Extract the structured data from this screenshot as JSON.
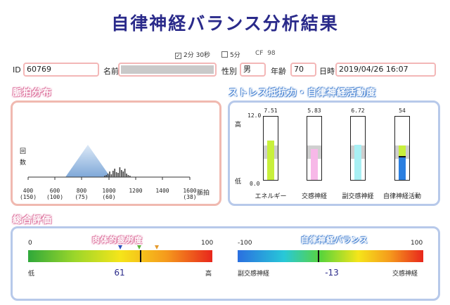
{
  "title": "自律神経バランス分析結果",
  "options": {
    "opt1_label": "2分 30秒",
    "opt1_checked": true,
    "opt2_label": "5分",
    "opt2_checked": false,
    "cf_label": "CF",
    "cf_value": "98"
  },
  "form": {
    "id_label": "ID",
    "id_value": "60769",
    "name_label": "名前",
    "name_value": "",
    "sex_label": "性別",
    "sex_value": "男",
    "age_label": "年齢",
    "age_value": "70",
    "date_label": "日時",
    "date_value": "2019/04/26 16:07"
  },
  "pulse": {
    "title": "脈拍分布",
    "ylabel_1": "回",
    "ylabel_2": "数",
    "xlabel": "脈拍",
    "ticks": [
      "400",
      "600",
      "800",
      "1000",
      "1200",
      "1400",
      "1600"
    ],
    "ticks_sub": [
      "(150)",
      "(100)",
      "(75)",
      "(60)",
      "",
      "",
      "(38)"
    ]
  },
  "stress": {
    "title": "ストレス抵抗力・自律神経活動度",
    "high": "高",
    "low": "低",
    "scale_top": "12.0",
    "scale_bottom": "0.0",
    "bars": [
      {
        "label": "エネルギー",
        "value_text": "7.51",
        "value": 7.51,
        "color": "#c8f03c"
      },
      {
        "label": "交感神経",
        "value_text": "5.83",
        "value": 5.83,
        "color": "#f7b8e8"
      },
      {
        "label": "副交感神経",
        "value_text": "6.72",
        "value": 6.72,
        "color": "#a8f0f4"
      },
      {
        "label": "自律神経活動",
        "value_text": "54",
        "value": 54,
        "color": "#c8f03c",
        "overlay_color": "#2b7fe0"
      }
    ]
  },
  "overall": {
    "title": "総合評価",
    "fatigue": {
      "label": "肉体的疲労度",
      "min": "0",
      "max": "100",
      "low": "低",
      "high": "高",
      "value_text": "61",
      "value": 61
    },
    "balance": {
      "label": "自律神経バランス",
      "min": "-100",
      "max": "100",
      "left": "副交感神経",
      "right": "交感神経",
      "value_text": "-13",
      "value": -13
    }
  },
  "colors": {
    "title": "#2a2a8a",
    "pink": "#e07fa6",
    "blue": "#5a8fd6",
    "field_border": "#f3b7b7"
  }
}
